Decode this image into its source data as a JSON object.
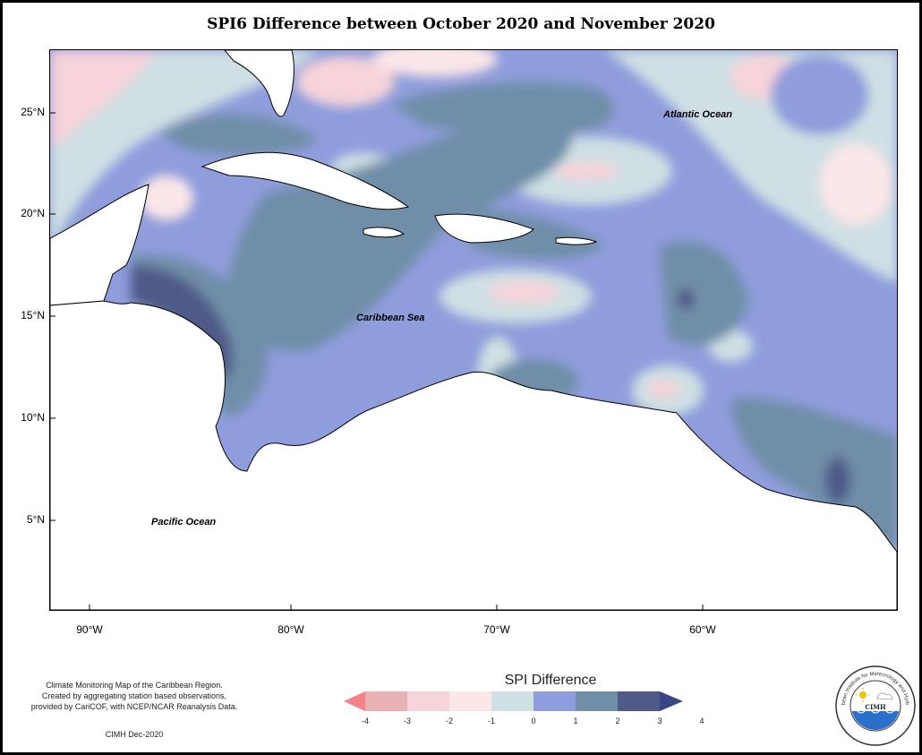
{
  "title": "SPI6 Difference between October 2020 and November 2020",
  "map": {
    "lat_labels": [
      "25°N",
      "20°N",
      "15°N",
      "10°N",
      "5°N"
    ],
    "lon_labels": [
      "90°W",
      "80°W",
      "70°W",
      "60°W"
    ],
    "oceans": {
      "atlantic": "Atlantic Ocean",
      "caribbean": "Caribbean Sea",
      "pacific": "Pacific Ocean"
    }
  },
  "credit": {
    "line1": "Climate Monitoring Map of the Caribbean Region.",
    "line2": "Created by aggregating station based observations,",
    "line3": "provided by CariCOF, with NCEP/NCAR Reanalysis Data.",
    "date": "CIMH Dec-2020"
  },
  "legend": {
    "title": "SPI Difference",
    "ticks": [
      "-4",
      "-3",
      "-2",
      "-1",
      "0",
      "1",
      "2",
      "3",
      "4"
    ],
    "colors": [
      "#f5838b",
      "#e8b1b4",
      "#f6d3d9",
      "#fbe6e8",
      "#cfe0e4",
      "#8f9ddc",
      "#6f8ea8",
      "#4f5a88",
      "#3a4585"
    ]
  },
  "logo": {
    "arc_text": "Caribbean Institute for Meteorology and Hydrology",
    "name": "CIMH"
  }
}
